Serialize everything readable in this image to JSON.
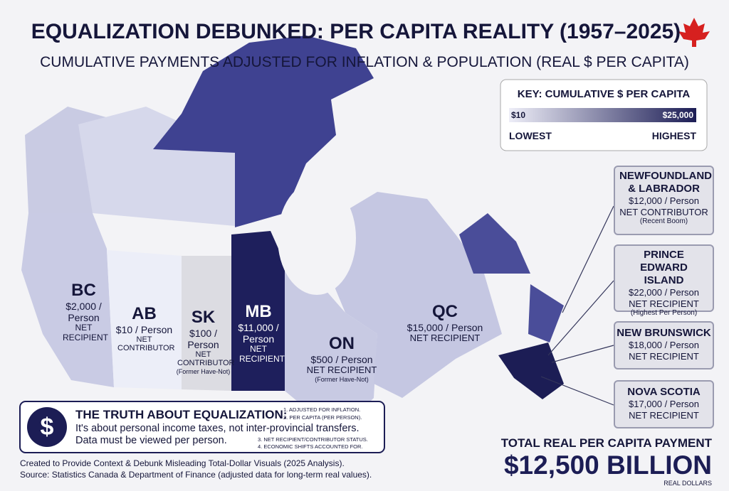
{
  "header": {
    "title": "EQUALIZATION DEBUNKED: PER CAPITA REALITY (1957–2025)",
    "subtitle": "CUMULATIVE PAYMENTS ADJUSTED FOR INFLATION & POPULATION (REAL $ PER CAPITA)"
  },
  "key": {
    "title": "KEY: CUMULATIVE $ PER CAPITA",
    "min_label": "$10",
    "max_label": "$25,000",
    "low": "LOWEST",
    "high": "HIGHEST"
  },
  "provinces": [
    {
      "code": "BC",
      "amount": "$2,000 / Person",
      "status": "NET RECIPIENT"
    },
    {
      "code": "AB",
      "amount": "$10 / Person",
      "status": "NET CONTRIBUTOR"
    },
    {
      "code": "SK",
      "amount": "$100 / Person",
      "status": "NET CONTRIBUTOR",
      "note": "(Former Have-Not)"
    },
    {
      "code": "MB",
      "amount": "$11,000 / Person",
      "status": "NET RECIPIENT"
    },
    {
      "code": "ON",
      "amount": "$500 / Person",
      "status": "NET RECIPIENT",
      "note": "(Former Have-Not)"
    },
    {
      "code": "QC",
      "amount": "$15,000 / Person",
      "status": "NET RECIPIENT"
    }
  ],
  "callouts": [
    {
      "name": "NEWFOUNDLAND & LABRADOR",
      "amount": "$12,000 / Person",
      "status": "NET CONTRIBUTOR",
      "note": "(Recent Boom)"
    },
    {
      "name": "PRINCE EDWARD ISLAND",
      "amount": "$22,000 / Person",
      "status": "NET RECIPIENT",
      "note": "(Highest Per Person)"
    },
    {
      "name": "NEW BRUNSWICK",
      "amount": "$18,000 / Person",
      "status": "NET RECIPIENT"
    },
    {
      "name": "NOVA SCOTIA",
      "amount": "$17,000 / Person",
      "status": "NET RECIPIENT"
    }
  ],
  "truth": {
    "icon": "$",
    "title": "THE TRUTH ABOUT EQUALIZATION:",
    "body": "It's about personal income taxes, not inter-provincial transfers. Data must be viewed per person.",
    "notes": [
      "1. ADJUSTED FOR INFLATION.",
      "2. PER CAPITA (PER PERSON).",
      "3. NET RECIPIENT/CONTRIBUTOR STATUS.",
      "4. ECONOMIC SHIFTS ACCOUNTED FOR."
    ]
  },
  "footer": {
    "line1": "Created to Provide Context & Debunk Misleading Total-Dollar Visuals (2025 Analysis).",
    "line2": "Source: Statistics Canada & Department of Finance (adjusted data for long-term real values)."
  },
  "total": {
    "label": "TOTAL REAL PER CAPITA PAYMENT",
    "amount": "$12,500 BILLION",
    "unit": "REAL DOLLARS"
  }
}
